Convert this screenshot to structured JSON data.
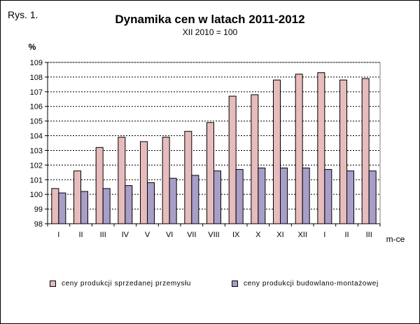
{
  "figure_label": "Rys. 1.",
  "chart_data": {
    "type": "bar",
    "title": "Dynamika cen w latach 2011-2012",
    "subtitle": "XII 2010 = 100",
    "ylabel": "%",
    "xlabel": "m-ce",
    "ylim": [
      98,
      109
    ],
    "yticks": [
      98,
      99,
      100,
      101,
      102,
      103,
      104,
      105,
      106,
      107,
      108,
      109
    ],
    "grid": true,
    "legend_position": "bottom",
    "categories": [
      "I",
      "II",
      "III",
      "IV",
      "V",
      "VI",
      "VII",
      "VIII",
      "IX",
      "X",
      "XI",
      "XII",
      "I",
      "II",
      "III"
    ],
    "series": [
      {
        "name": "ceny produkcji sprzedanej przemysłu",
        "color": "#e6bcbc",
        "values": [
          100.4,
          101.6,
          103.2,
          103.9,
          103.6,
          103.9,
          104.3,
          104.9,
          106.7,
          106.8,
          107.8,
          108.2,
          108.3,
          107.8,
          107.9
        ]
      },
      {
        "name": "ceny produkcji budowlano-montażowej",
        "color": "#a89ec8",
        "values": [
          100.1,
          100.2,
          100.4,
          100.6,
          100.8,
          101.1,
          101.3,
          101.6,
          101.7,
          101.8,
          101.8,
          101.8,
          101.7,
          101.6,
          101.6
        ]
      }
    ]
  }
}
